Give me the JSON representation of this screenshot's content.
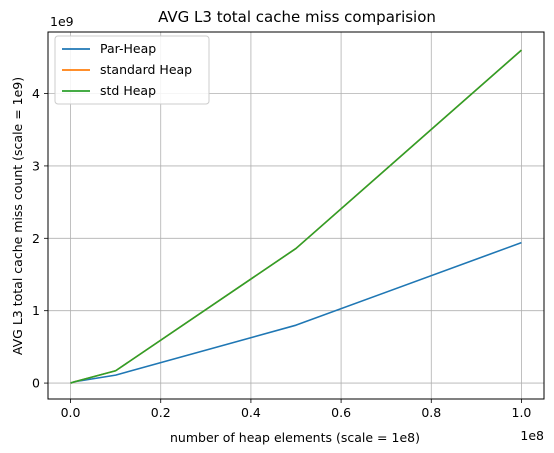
{
  "chart_data": {
    "type": "line",
    "title": "AVG L3 total cache miss comparision",
    "xlabel": "number of heap elements (scale = 1e8)",
    "ylabel": "AVG L3 total cache miss count (scale = 1e9)",
    "x_offset_label": "1e8",
    "y_offset_label": "1e9",
    "xlim": [
      -0.05,
      1.05
    ],
    "ylim": [
      -0.22,
      4.85
    ],
    "x_ticks": [
      0.0,
      0.2,
      0.4,
      0.6,
      0.8,
      1.0
    ],
    "x_tick_labels": [
      "0.0",
      "0.2",
      "0.4",
      "0.6",
      "0.8",
      "1.0"
    ],
    "y_ticks": [
      0,
      1,
      2,
      3,
      4
    ],
    "y_tick_labels": [
      "0",
      "1",
      "2",
      "3",
      "4"
    ],
    "grid": true,
    "legend_position": "top-left",
    "series": [
      {
        "name": "Par-Heap",
        "color": "#1f77b4",
        "x": [
          0.0,
          0.01,
          0.1,
          0.5,
          1.0
        ],
        "y": [
          0.0,
          0.02,
          0.11,
          0.8,
          1.94
        ]
      },
      {
        "name": "standard Heap",
        "color": "#ff7f0e",
        "x": [
          0.0,
          0.01,
          0.1,
          0.5,
          1.0
        ],
        "y": [
          0.0,
          0.02,
          0.17,
          1.86,
          4.6
        ]
      },
      {
        "name": "std Heap",
        "color": "#2ca02c",
        "x": [
          0.0,
          0.01,
          0.1,
          0.5,
          1.0
        ],
        "y": [
          0.0,
          0.02,
          0.17,
          1.86,
          4.6
        ]
      }
    ]
  }
}
